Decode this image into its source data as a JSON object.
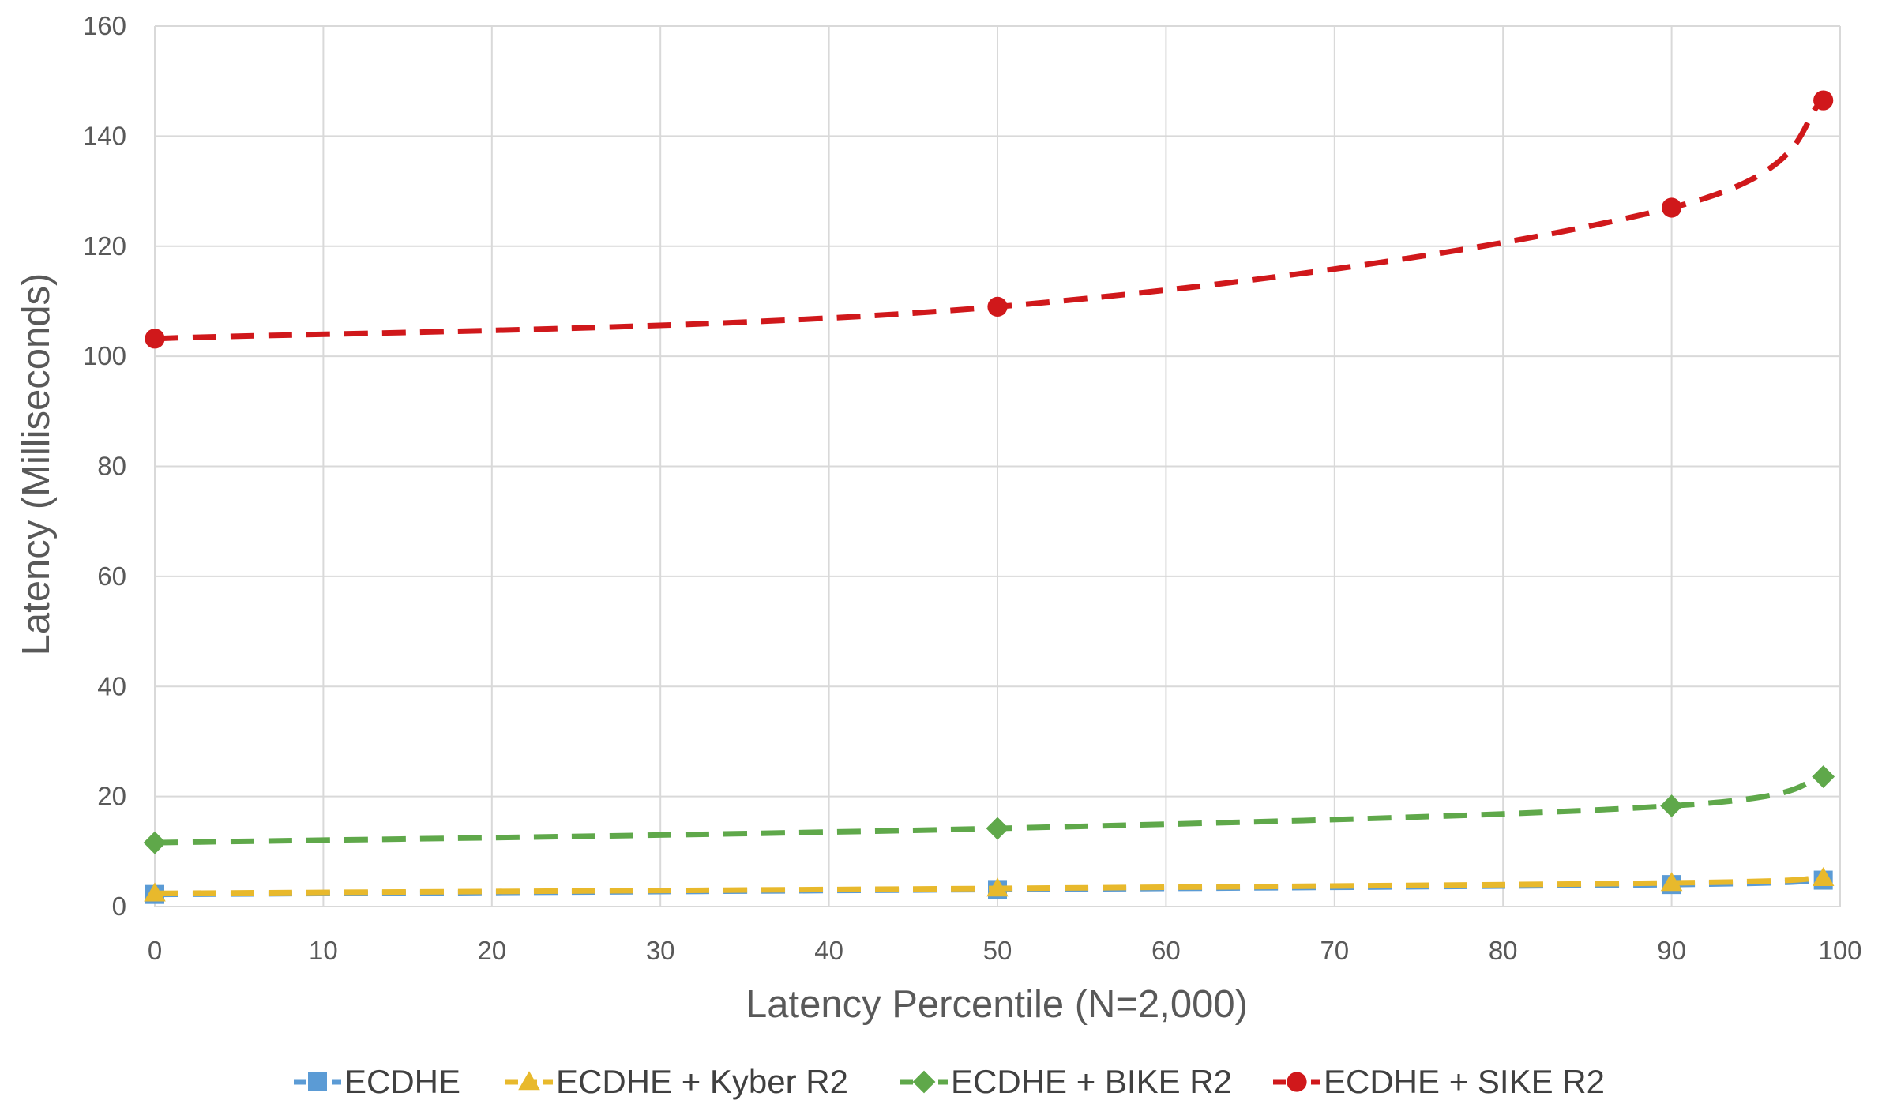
{
  "chart_data": {
    "type": "line",
    "title": "",
    "xlabel": "Latency Percentile (N=2,000)",
    "ylabel": "Latency (Milliseconds)",
    "xlim": [
      0,
      100
    ],
    "ylim": [
      0,
      160
    ],
    "xticks": [
      0,
      10,
      20,
      30,
      40,
      50,
      60,
      70,
      80,
      90,
      100
    ],
    "yticks": [
      0,
      20,
      40,
      60,
      80,
      100,
      120,
      140,
      160
    ],
    "grid": true,
    "legend_position": "bottom",
    "x": [
      0,
      50,
      90,
      99
    ],
    "series": [
      {
        "name": "ECDHE",
        "values": [
          2.2,
          3.1,
          4.0,
          4.8
        ],
        "color": "#5B9BD5",
        "marker": "square"
      },
      {
        "name": "ECDHE + Kyber R2",
        "values": [
          2.4,
          3.3,
          4.3,
          5.2
        ],
        "color": "#E8B92C",
        "marker": "triangle"
      },
      {
        "name": "ECDHE + BIKE R2",
        "values": [
          11.6,
          14.2,
          18.3,
          23.6
        ],
        "color": "#5FA84A",
        "marker": "diamond"
      },
      {
        "name": "ECDHE + SIKE R2",
        "values": [
          103.2,
          109.0,
          127.0,
          146.5
        ],
        "color": "#D0181B",
        "marker": "circle"
      }
    ]
  }
}
